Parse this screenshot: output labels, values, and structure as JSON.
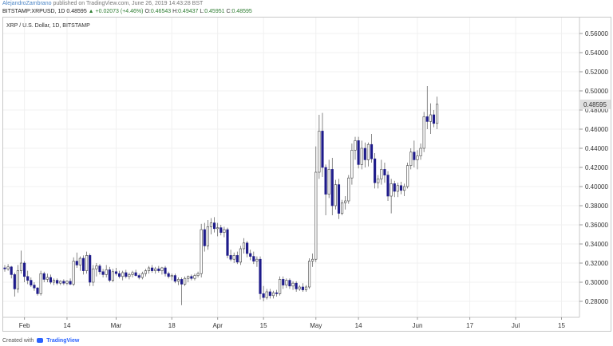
{
  "header": {
    "author": "AlejandroZambrano",
    "published": "published on TradingView.com, June 26, 2019 14:43:28 BST",
    "symbol": "BITSTAMP:XRPUSD, 1D",
    "close_value": "0.48595",
    "change": "▲ +0.02073 (+4.46%)",
    "o_label": "O:",
    "o_value": "0.46543",
    "h_label": "H:",
    "h_value": "0.49437",
    "l_label": "L:",
    "l_value": "0.45951",
    "c_label": "C:",
    "c_value": "0.48595"
  },
  "footer": {
    "created_with": "Created with",
    "brand": "TradingView"
  },
  "colors": {
    "up": "#ffffff",
    "down": "#1e1b8a",
    "wick": "#555555",
    "last_price_bg": "#e0e0e0"
  },
  "chart_data": {
    "type": "candlestick",
    "title": "XRP / U.S. Dollar, 1D, BITSTAMP",
    "y_axis": {
      "ylim": [
        0.265,
        0.575
      ],
      "ticks": [
        "0.56000",
        "0.54000",
        "0.52000",
        "0.50000",
        "0.48000",
        "0.46000",
        "0.44000",
        "0.42000",
        "0.40000",
        "0.38000",
        "0.36000",
        "0.34000",
        "0.32000",
        "0.30000",
        "0.28000"
      ],
      "last_price_label": "0.48595"
    },
    "x_axis": {
      "labels": [
        {
          "text": "Feb",
          "day": 31
        },
        {
          "text": "14",
          "day": 44
        },
        {
          "text": "Mar",
          "day": 59
        },
        {
          "text": "18",
          "day": 76
        },
        {
          "text": "Apr",
          "day": 90
        },
        {
          "text": "15",
          "day": 104
        },
        {
          "text": "May",
          "day": 120
        },
        {
          "text": "14",
          "day": 133
        },
        {
          "text": "Jun",
          "day": 151
        },
        {
          "text": "17",
          "day": 167
        },
        {
          "text": "Jul",
          "day": 181
        },
        {
          "text": "15",
          "day": 195
        }
      ],
      "day_range": [
        25,
        200
      ]
    },
    "candles": [
      {
        "day": 25,
        "o": 0.315,
        "h": 0.318,
        "l": 0.311,
        "c": 0.314
      },
      {
        "day": 26,
        "o": 0.314,
        "h": 0.319,
        "l": 0.312,
        "c": 0.316
      },
      {
        "day": 27,
        "o": 0.316,
        "h": 0.317,
        "l": 0.304,
        "c": 0.308
      },
      {
        "day": 28,
        "o": 0.308,
        "h": 0.31,
        "l": 0.285,
        "c": 0.293
      },
      {
        "day": 29,
        "o": 0.293,
        "h": 0.318,
        "l": 0.289,
        "c": 0.312
      },
      {
        "day": 30,
        "o": 0.312,
        "h": 0.333,
        "l": 0.309,
        "c": 0.32
      },
      {
        "day": 31,
        "o": 0.32,
        "h": 0.322,
        "l": 0.3,
        "c": 0.306
      },
      {
        "day": 32,
        "o": 0.306,
        "h": 0.312,
        "l": 0.298,
        "c": 0.302
      },
      {
        "day": 33,
        "o": 0.302,
        "h": 0.305,
        "l": 0.295,
        "c": 0.297
      },
      {
        "day": 34,
        "o": 0.297,
        "h": 0.3,
        "l": 0.291,
        "c": 0.294
      },
      {
        "day": 35,
        "o": 0.294,
        "h": 0.295,
        "l": 0.286,
        "c": 0.288
      },
      {
        "day": 36,
        "o": 0.288,
        "h": 0.312,
        "l": 0.286,
        "c": 0.309
      },
      {
        "day": 37,
        "o": 0.309,
        "h": 0.311,
        "l": 0.3,
        "c": 0.303
      },
      {
        "day": 38,
        "o": 0.303,
        "h": 0.309,
        "l": 0.3,
        "c": 0.305
      },
      {
        "day": 39,
        "o": 0.305,
        "h": 0.308,
        "l": 0.298,
        "c": 0.3
      },
      {
        "day": 40,
        "o": 0.3,
        "h": 0.304,
        "l": 0.297,
        "c": 0.302
      },
      {
        "day": 41,
        "o": 0.302,
        "h": 0.304,
        "l": 0.297,
        "c": 0.299
      },
      {
        "day": 42,
        "o": 0.299,
        "h": 0.302,
        "l": 0.297,
        "c": 0.301
      },
      {
        "day": 43,
        "o": 0.301,
        "h": 0.303,
        "l": 0.297,
        "c": 0.299
      },
      {
        "day": 44,
        "o": 0.299,
        "h": 0.302,
        "l": 0.297,
        "c": 0.301
      },
      {
        "day": 45,
        "o": 0.301,
        "h": 0.304,
        "l": 0.297,
        "c": 0.298
      },
      {
        "day": 46,
        "o": 0.298,
        "h": 0.326,
        "l": 0.296,
        "c": 0.322
      },
      {
        "day": 47,
        "o": 0.322,
        "h": 0.331,
        "l": 0.315,
        "c": 0.318
      },
      {
        "day": 48,
        "o": 0.318,
        "h": 0.327,
        "l": 0.312,
        "c": 0.325
      },
      {
        "day": 49,
        "o": 0.325,
        "h": 0.328,
        "l": 0.308,
        "c": 0.312
      },
      {
        "day": 50,
        "o": 0.312,
        "h": 0.332,
        "l": 0.309,
        "c": 0.328
      },
      {
        "day": 51,
        "o": 0.328,
        "h": 0.33,
        "l": 0.296,
        "c": 0.3
      },
      {
        "day": 52,
        "o": 0.3,
        "h": 0.318,
        "l": 0.296,
        "c": 0.314
      },
      {
        "day": 53,
        "o": 0.314,
        "h": 0.32,
        "l": 0.306,
        "c": 0.317
      },
      {
        "day": 54,
        "o": 0.317,
        "h": 0.319,
        "l": 0.308,
        "c": 0.311
      },
      {
        "day": 55,
        "o": 0.311,
        "h": 0.314,
        "l": 0.305,
        "c": 0.308
      },
      {
        "day": 56,
        "o": 0.308,
        "h": 0.318,
        "l": 0.305,
        "c": 0.313
      },
      {
        "day": 57,
        "o": 0.313,
        "h": 0.316,
        "l": 0.3,
        "c": 0.302
      },
      {
        "day": 58,
        "o": 0.302,
        "h": 0.314,
        "l": 0.3,
        "c": 0.311
      },
      {
        "day": 59,
        "o": 0.311,
        "h": 0.315,
        "l": 0.307,
        "c": 0.309
      },
      {
        "day": 60,
        "o": 0.309,
        "h": 0.312,
        "l": 0.304,
        "c": 0.306
      },
      {
        "day": 61,
        "o": 0.306,
        "h": 0.312,
        "l": 0.302,
        "c": 0.31
      },
      {
        "day": 62,
        "o": 0.31,
        "h": 0.313,
        "l": 0.304,
        "c": 0.306
      },
      {
        "day": 63,
        "o": 0.306,
        "h": 0.31,
        "l": 0.303,
        "c": 0.308
      },
      {
        "day": 64,
        "o": 0.308,
        "h": 0.312,
        "l": 0.305,
        "c": 0.31
      },
      {
        "day": 65,
        "o": 0.31,
        "h": 0.313,
        "l": 0.306,
        "c": 0.307
      },
      {
        "day": 66,
        "o": 0.307,
        "h": 0.309,
        "l": 0.303,
        "c": 0.305
      },
      {
        "day": 67,
        "o": 0.305,
        "h": 0.311,
        "l": 0.303,
        "c": 0.309
      },
      {
        "day": 68,
        "o": 0.309,
        "h": 0.314,
        "l": 0.306,
        "c": 0.312
      },
      {
        "day": 69,
        "o": 0.312,
        "h": 0.317,
        "l": 0.309,
        "c": 0.315
      },
      {
        "day": 70,
        "o": 0.315,
        "h": 0.318,
        "l": 0.31,
        "c": 0.312
      },
      {
        "day": 71,
        "o": 0.312,
        "h": 0.316,
        "l": 0.309,
        "c": 0.314
      },
      {
        "day": 72,
        "o": 0.314,
        "h": 0.317,
        "l": 0.31,
        "c": 0.312
      },
      {
        "day": 73,
        "o": 0.312,
        "h": 0.316,
        "l": 0.308,
        "c": 0.315
      },
      {
        "day": 74,
        "o": 0.315,
        "h": 0.317,
        "l": 0.306,
        "c": 0.309
      },
      {
        "day": 75,
        "o": 0.309,
        "h": 0.311,
        "l": 0.304,
        "c": 0.306
      },
      {
        "day": 76,
        "o": 0.306,
        "h": 0.309,
        "l": 0.302,
        "c": 0.307
      },
      {
        "day": 77,
        "o": 0.307,
        "h": 0.309,
        "l": 0.299,
        "c": 0.301
      },
      {
        "day": 78,
        "o": 0.301,
        "h": 0.305,
        "l": 0.297,
        "c": 0.303
      },
      {
        "day": 79,
        "o": 0.303,
        "h": 0.305,
        "l": 0.276,
        "c": 0.298
      },
      {
        "day": 80,
        "o": 0.298,
        "h": 0.306,
        "l": 0.296,
        "c": 0.304
      },
      {
        "day": 81,
        "o": 0.304,
        "h": 0.307,
        "l": 0.3,
        "c": 0.306
      },
      {
        "day": 82,
        "o": 0.306,
        "h": 0.308,
        "l": 0.302,
        "c": 0.304
      },
      {
        "day": 83,
        "o": 0.304,
        "h": 0.309,
        "l": 0.302,
        "c": 0.307
      },
      {
        "day": 84,
        "o": 0.307,
        "h": 0.311,
        "l": 0.305,
        "c": 0.309
      },
      {
        "day": 85,
        "o": 0.309,
        "h": 0.361,
        "l": 0.305,
        "c": 0.355
      },
      {
        "day": 86,
        "o": 0.355,
        "h": 0.362,
        "l": 0.332,
        "c": 0.338
      },
      {
        "day": 87,
        "o": 0.338,
        "h": 0.365,
        "l": 0.334,
        "c": 0.358
      },
      {
        "day": 88,
        "o": 0.358,
        "h": 0.367,
        "l": 0.35,
        "c": 0.362
      },
      {
        "day": 89,
        "o": 0.362,
        "h": 0.368,
        "l": 0.352,
        "c": 0.356
      },
      {
        "day": 90,
        "o": 0.356,
        "h": 0.362,
        "l": 0.348,
        "c": 0.357
      },
      {
        "day": 91,
        "o": 0.357,
        "h": 0.36,
        "l": 0.349,
        "c": 0.352
      },
      {
        "day": 92,
        "o": 0.352,
        "h": 0.358,
        "l": 0.347,
        "c": 0.355
      },
      {
        "day": 93,
        "o": 0.355,
        "h": 0.357,
        "l": 0.325,
        "c": 0.328
      },
      {
        "day": 94,
        "o": 0.328,
        "h": 0.334,
        "l": 0.322,
        "c": 0.324
      },
      {
        "day": 95,
        "o": 0.324,
        "h": 0.331,
        "l": 0.32,
        "c": 0.328
      },
      {
        "day": 96,
        "o": 0.328,
        "h": 0.332,
        "l": 0.319,
        "c": 0.321
      },
      {
        "day": 97,
        "o": 0.321,
        "h": 0.338,
        "l": 0.318,
        "c": 0.335
      },
      {
        "day": 98,
        "o": 0.335,
        "h": 0.346,
        "l": 0.33,
        "c": 0.341
      },
      {
        "day": 99,
        "o": 0.341,
        "h": 0.343,
        "l": 0.326,
        "c": 0.33
      },
      {
        "day": 100,
        "o": 0.33,
        "h": 0.334,
        "l": 0.323,
        "c": 0.327
      },
      {
        "day": 101,
        "o": 0.327,
        "h": 0.332,
        "l": 0.319,
        "c": 0.322
      },
      {
        "day": 102,
        "o": 0.322,
        "h": 0.327,
        "l": 0.316,
        "c": 0.324
      },
      {
        "day": 103,
        "o": 0.324,
        "h": 0.327,
        "l": 0.282,
        "c": 0.288
      },
      {
        "day": 104,
        "o": 0.288,
        "h": 0.296,
        "l": 0.28,
        "c": 0.284
      },
      {
        "day": 105,
        "o": 0.284,
        "h": 0.293,
        "l": 0.282,
        "c": 0.29
      },
      {
        "day": 106,
        "o": 0.29,
        "h": 0.293,
        "l": 0.283,
        "c": 0.286
      },
      {
        "day": 107,
        "o": 0.286,
        "h": 0.291,
        "l": 0.283,
        "c": 0.289
      },
      {
        "day": 108,
        "o": 0.289,
        "h": 0.292,
        "l": 0.285,
        "c": 0.288
      },
      {
        "day": 109,
        "o": 0.288,
        "h": 0.306,
        "l": 0.286,
        "c": 0.303
      },
      {
        "day": 110,
        "o": 0.303,
        "h": 0.306,
        "l": 0.293,
        "c": 0.297
      },
      {
        "day": 111,
        "o": 0.297,
        "h": 0.304,
        "l": 0.294,
        "c": 0.302
      },
      {
        "day": 112,
        "o": 0.302,
        "h": 0.304,
        "l": 0.293,
        "c": 0.296
      },
      {
        "day": 113,
        "o": 0.296,
        "h": 0.301,
        "l": 0.292,
        "c": 0.299
      },
      {
        "day": 114,
        "o": 0.299,
        "h": 0.301,
        "l": 0.29,
        "c": 0.293
      },
      {
        "day": 115,
        "o": 0.293,
        "h": 0.297,
        "l": 0.291,
        "c": 0.295
      },
      {
        "day": 116,
        "o": 0.295,
        "h": 0.299,
        "l": 0.29,
        "c": 0.292
      },
      {
        "day": 117,
        "o": 0.292,
        "h": 0.297,
        "l": 0.29,
        "c": 0.295
      },
      {
        "day": 118,
        "o": 0.295,
        "h": 0.325,
        "l": 0.293,
        "c": 0.322
      },
      {
        "day": 119,
        "o": 0.322,
        "h": 0.33,
        "l": 0.316,
        "c": 0.324
      },
      {
        "day": 120,
        "o": 0.324,
        "h": 0.442,
        "l": 0.321,
        "c": 0.415
      },
      {
        "day": 121,
        "o": 0.415,
        "h": 0.475,
        "l": 0.408,
        "c": 0.458
      },
      {
        "day": 122,
        "o": 0.458,
        "h": 0.477,
        "l": 0.41,
        "c": 0.42
      },
      {
        "day": 123,
        "o": 0.42,
        "h": 0.423,
        "l": 0.37,
        "c": 0.392
      },
      {
        "day": 124,
        "o": 0.392,
        "h": 0.428,
        "l": 0.388,
        "c": 0.418
      },
      {
        "day": 125,
        "o": 0.418,
        "h": 0.43,
        "l": 0.37,
        "c": 0.38
      },
      {
        "day": 126,
        "o": 0.38,
        "h": 0.407,
        "l": 0.376,
        "c": 0.402
      },
      {
        "day": 127,
        "o": 0.402,
        "h": 0.408,
        "l": 0.366,
        "c": 0.372
      },
      {
        "day": 128,
        "o": 0.372,
        "h": 0.386,
        "l": 0.37,
        "c": 0.383
      },
      {
        "day": 129,
        "o": 0.383,
        "h": 0.39,
        "l": 0.376,
        "c": 0.385
      },
      {
        "day": 130,
        "o": 0.385,
        "h": 0.412,
        "l": 0.382,
        "c": 0.409
      },
      {
        "day": 131,
        "o": 0.409,
        "h": 0.445,
        "l": 0.402,
        "c": 0.438
      },
      {
        "day": 132,
        "o": 0.438,
        "h": 0.452,
        "l": 0.428,
        "c": 0.448
      },
      {
        "day": 133,
        "o": 0.448,
        "h": 0.452,
        "l": 0.419,
        "c": 0.423
      },
      {
        "day": 134,
        "o": 0.423,
        "h": 0.448,
        "l": 0.418,
        "c": 0.44
      },
      {
        "day": 135,
        "o": 0.44,
        "h": 0.446,
        "l": 0.42,
        "c": 0.428
      },
      {
        "day": 136,
        "o": 0.428,
        "h": 0.446,
        "l": 0.421,
        "c": 0.444
      },
      {
        "day": 137,
        "o": 0.444,
        "h": 0.455,
        "l": 0.425,
        "c": 0.429
      },
      {
        "day": 138,
        "o": 0.429,
        "h": 0.435,
        "l": 0.398,
        "c": 0.404
      },
      {
        "day": 139,
        "o": 0.404,
        "h": 0.412,
        "l": 0.398,
        "c": 0.408
      },
      {
        "day": 140,
        "o": 0.408,
        "h": 0.428,
        "l": 0.402,
        "c": 0.418
      },
      {
        "day": 141,
        "o": 0.418,
        "h": 0.425,
        "l": 0.404,
        "c": 0.412
      },
      {
        "day": 142,
        "o": 0.412,
        "h": 0.416,
        "l": 0.385,
        "c": 0.39
      },
      {
        "day": 143,
        "o": 0.39,
        "h": 0.408,
        "l": 0.372,
        "c": 0.403
      },
      {
        "day": 144,
        "o": 0.403,
        "h": 0.406,
        "l": 0.389,
        "c": 0.395
      },
      {
        "day": 145,
        "o": 0.395,
        "h": 0.404,
        "l": 0.389,
        "c": 0.401
      },
      {
        "day": 146,
        "o": 0.401,
        "h": 0.405,
        "l": 0.392,
        "c": 0.396
      },
      {
        "day": 147,
        "o": 0.396,
        "h": 0.403,
        "l": 0.39,
        "c": 0.4
      },
      {
        "day": 148,
        "o": 0.4,
        "h": 0.425,
        "l": 0.398,
        "c": 0.422
      },
      {
        "day": 149,
        "o": 0.422,
        "h": 0.44,
        "l": 0.418,
        "c": 0.436
      },
      {
        "day": 150,
        "o": 0.436,
        "h": 0.448,
        "l": 0.42,
        "c": 0.428
      },
      {
        "day": 151,
        "o": 0.428,
        "h": 0.438,
        "l": 0.418,
        "c": 0.432
      },
      {
        "day": 152,
        "o": 0.432,
        "h": 0.445,
        "l": 0.428,
        "c": 0.44
      },
      {
        "day": 153,
        "o": 0.44,
        "h": 0.478,
        "l": 0.436,
        "c": 0.473
      },
      {
        "day": 154,
        "o": 0.473,
        "h": 0.505,
        "l": 0.46,
        "c": 0.468
      },
      {
        "day": 155,
        "o": 0.468,
        "h": 0.487,
        "l": 0.455,
        "c": 0.475
      },
      {
        "day": 156,
        "o": 0.475,
        "h": 0.48,
        "l": 0.462,
        "c": 0.466
      },
      {
        "day": 157,
        "o": 0.466,
        "h": 0.494,
        "l": 0.46,
        "c": 0.486
      }
    ]
  }
}
